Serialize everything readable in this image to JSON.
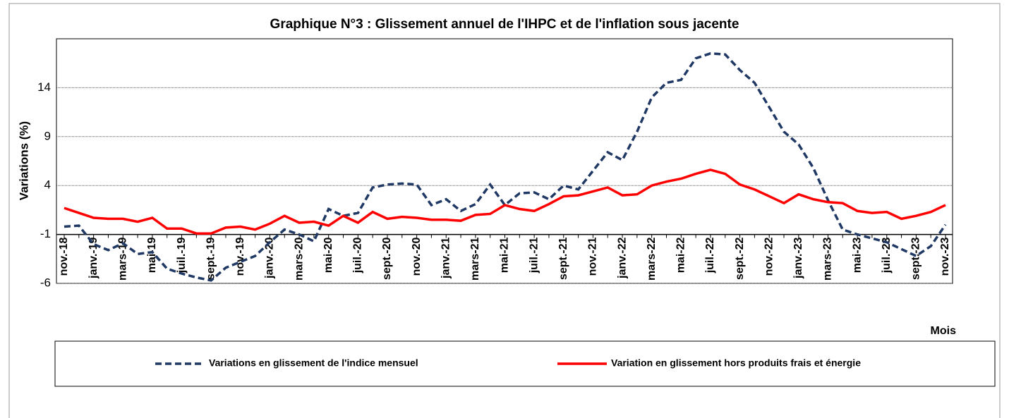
{
  "chart_data": {
    "type": "line",
    "title": "Graphique N°3 : Glissement annuel de l'IHPC et de l'inflation sous jacente",
    "ylabel": "Variations (%)",
    "xlabel": "Mois",
    "categories": [
      "nov.-18",
      null,
      "janv.-19",
      null,
      "mars-19",
      null,
      "mai-19",
      null,
      "juil.-19",
      null,
      "sept.-19",
      null,
      "nov.-19",
      null,
      "janv.-20",
      null,
      "mars-20",
      null,
      "mai-20",
      null,
      "juil.-20",
      null,
      "sept.-20",
      null,
      "nov.-20",
      null,
      "janv.-21",
      null,
      "mars-21",
      null,
      "mai-21",
      null,
      "juil.-21",
      null,
      "sept.-21",
      null,
      "nov.-21",
      null,
      "janv.-22",
      null,
      "mars-22",
      null,
      "mai-22",
      null,
      "juil.-22",
      null,
      "sept.-22",
      null,
      "nov.-22",
      null,
      "janv.-23",
      null,
      "mars-23",
      null,
      "mai-23",
      null,
      "juil.-23",
      null,
      "sept.-23",
      null,
      "nov.-23"
    ],
    "series": [
      {
        "name": "Variations en glissement de l'indice mensuel",
        "color": "#1f3864",
        "dash": true,
        "values": [
          -0.2,
          -0.1,
          -2.0,
          -2.6,
          -1.9,
          -3.0,
          -2.8,
          -4.5,
          -5.0,
          -5.4,
          -5.7,
          -4.4,
          -3.8,
          -3.2,
          -1.8,
          -0.5,
          -1.0,
          -1.7,
          1.6,
          0.9,
          1.2,
          3.8,
          4.1,
          4.2,
          4.1,
          2.0,
          2.6,
          1.4,
          2.1,
          4.1,
          2.0,
          3.2,
          3.3,
          2.6,
          4.0,
          3.6,
          5.5,
          7.4,
          6.6,
          9.5,
          13.0,
          14.5,
          14.8,
          17.0,
          17.5,
          17.4,
          15.8,
          14.5,
          12.0,
          9.5,
          8.2,
          5.8,
          2.5,
          -0.5,
          -1.0,
          -1.4,
          -1.8,
          -2.5,
          -3.2,
          -2.2,
          0.0
        ]
      },
      {
        "name": "Variation en glissement hors produits frais et énergie",
        "color": "#ff0000",
        "dash": false,
        "values": [
          1.7,
          1.2,
          0.7,
          0.6,
          0.6,
          0.3,
          0.7,
          -0.4,
          -0.4,
          -0.9,
          -0.9,
          -0.3,
          -0.2,
          -0.5,
          0.1,
          0.9,
          0.2,
          0.3,
          -0.1,
          0.9,
          0.2,
          1.3,
          0.6,
          0.8,
          0.7,
          0.5,
          0.5,
          0.4,
          1.0,
          1.1,
          2.0,
          1.6,
          1.4,
          2.1,
          2.9,
          3.0,
          3.4,
          3.8,
          3.0,
          3.1,
          4.0,
          4.4,
          4.7,
          5.2,
          5.6,
          5.2,
          4.1,
          3.6,
          2.9,
          2.2,
          3.1,
          2.6,
          2.3,
          2.2,
          1.4,
          1.2,
          1.3,
          0.6,
          0.9,
          1.3,
          2.0
        ]
      }
    ],
    "ylim": [
      -6,
      19
    ],
    "yticks": [
      -6,
      -1,
      4,
      9,
      14
    ],
    "grid": true
  }
}
